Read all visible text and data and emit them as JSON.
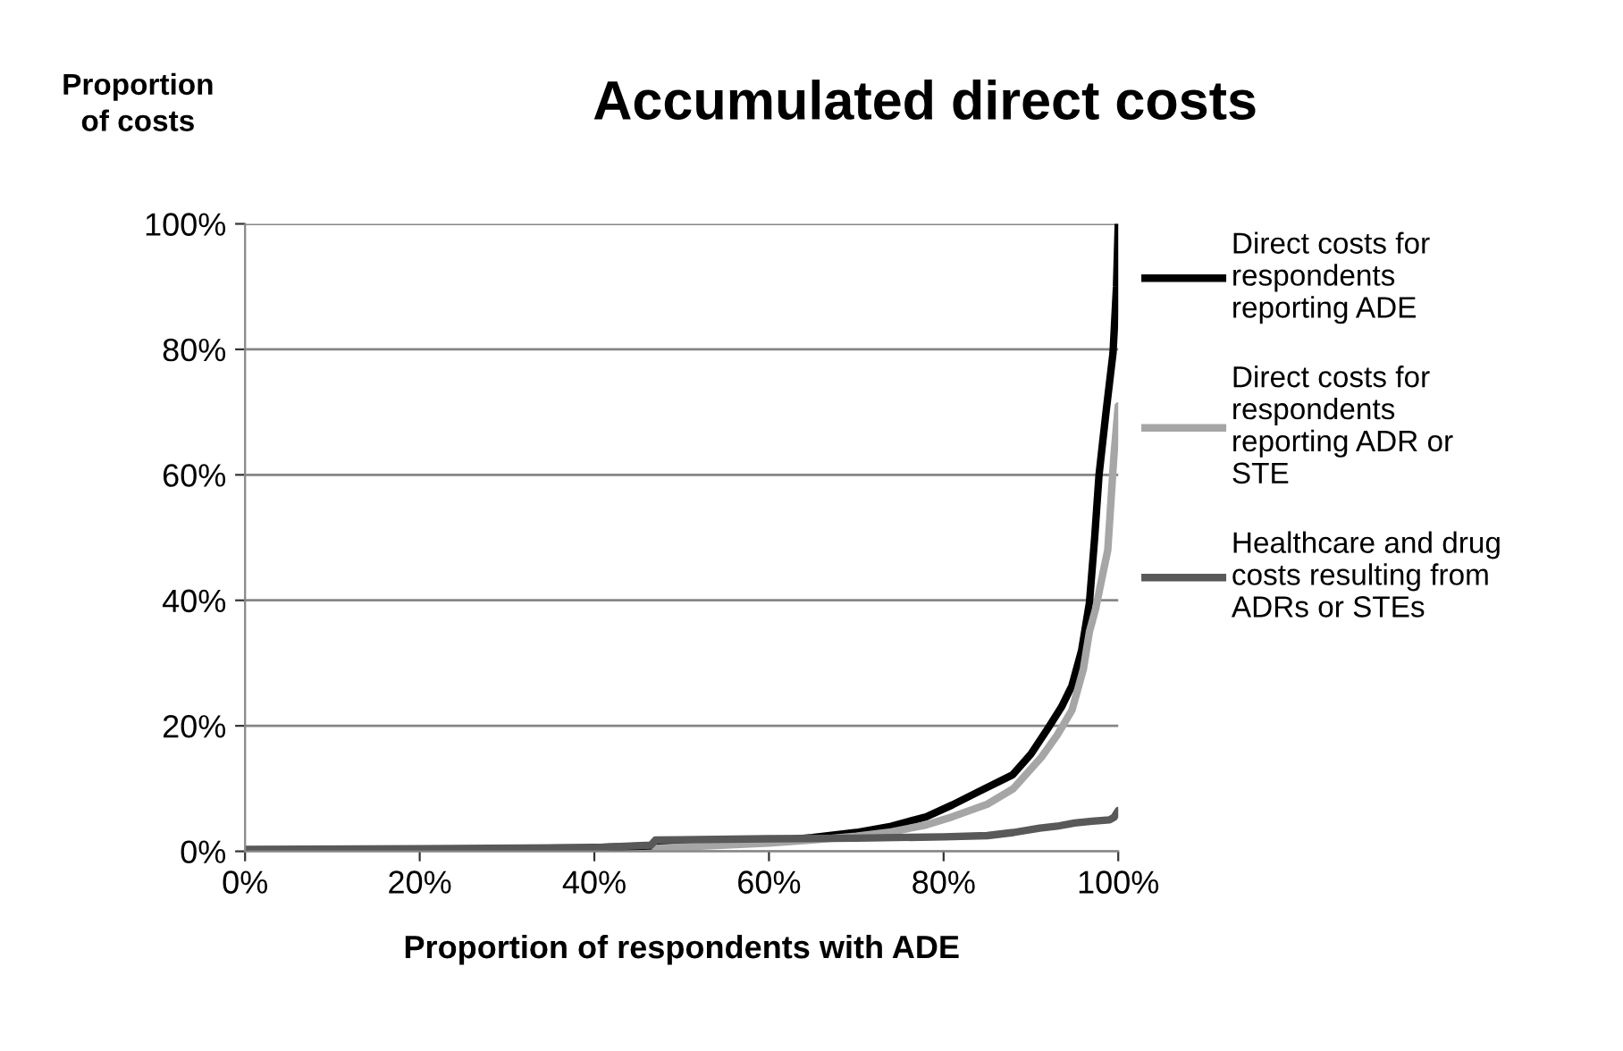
{
  "chart_data": {
    "type": "line",
    "title": "Accumulated direct costs",
    "xlabel": "Proportion of respondents with ADE",
    "ylabel": "Proportion\nof costs",
    "xlim": [
      0,
      100
    ],
    "ylim": [
      0,
      100
    ],
    "xticks": [
      {
        "value": 0,
        "label": "0%"
      },
      {
        "value": 20,
        "label": "20%"
      },
      {
        "value": 40,
        "label": "40%"
      },
      {
        "value": 60,
        "label": "60%"
      },
      {
        "value": 80,
        "label": "80%"
      },
      {
        "value": 100,
        "label": "100%"
      }
    ],
    "yticks": [
      {
        "value": 0,
        "label": "0%"
      },
      {
        "value": 20,
        "label": "20%"
      },
      {
        "value": 40,
        "label": "40%"
      },
      {
        "value": 60,
        "label": "60%"
      },
      {
        "value": 80,
        "label": "80%"
      },
      {
        "value": 100,
        "label": "100%"
      }
    ],
    "grid": "y",
    "legend": "right",
    "marker": "none",
    "line_style": "solid",
    "series": [
      {
        "name": "Direct costs for\nrespondents\nreporting ADE",
        "color": "#000000",
        "x": [
          0,
          20,
          40,
          50,
          60,
          65,
          70,
          74,
          78,
          81,
          84,
          87.9,
          90,
          92,
          93.5,
          94.7,
          95.8,
          96.7,
          97.3,
          97.8,
          98.6,
          99.4,
          99.8,
          100
        ],
        "values": [
          0,
          0.2,
          0.6,
          1,
          1.6,
          2.2,
          3,
          4,
          5.5,
          7.4,
          9.5,
          12.2,
          15.5,
          19.7,
          23,
          26.4,
          32,
          39.6,
          50,
          60,
          70,
          79.4,
          90,
          100
        ]
      },
      {
        "name": "Direct costs for\nrespondents\nreporting ADR or\nSTE",
        "color": "#a6a6a6",
        "x": [
          47,
          55,
          60,
          65,
          70,
          74,
          78,
          81,
          85,
          88,
          91.2,
          93,
          94.7,
          96,
          96.7,
          97.4,
          98.2,
          98.8,
          99.5,
          100
        ],
        "values": [
          0.5,
          1,
          1.3,
          1.8,
          2.4,
          3.1,
          4.2,
          5.5,
          7.5,
          10,
          15,
          18.5,
          22.5,
          29,
          35,
          38.6,
          44,
          48,
          63,
          71
        ]
      },
      {
        "name": "Healthcare and drug\ncosts resulting from\nADRs or STEs",
        "color": "#595959",
        "x": [
          0,
          20,
          40,
          46.5,
          47,
          60,
          70,
          80,
          85,
          88,
          91,
          93,
          95,
          97,
          99,
          99.5,
          100
        ],
        "values": [
          0.3,
          0.4,
          0.6,
          1,
          1.8,
          2,
          2.1,
          2.3,
          2.5,
          3,
          3.7,
          4,
          4.5,
          4.8,
          5,
          5.4,
          6.5
        ]
      }
    ]
  }
}
